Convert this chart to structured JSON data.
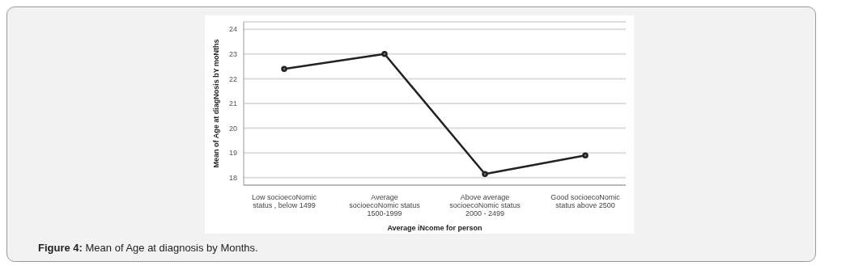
{
  "chart_data": {
    "type": "line",
    "xlabel": "Average iNcome for person",
    "ylabel": "Mean of Age at diagNosis bY moNths",
    "categories": [
      "Low socioecoNomic\nstatus , below 1499",
      "Average\nsocioecoNomic status\n1500-1999",
      "Above average\nsocioecoNomic status\n2000 - 2499",
      "Good socioecoNomic\nstatus above 2500"
    ],
    "series": [
      {
        "color": "#222222",
        "values": [
          22.4,
          23.0,
          18.15,
          18.9
        ]
      }
    ],
    "ylim": [
      17.7,
      24.3
    ],
    "yticks": [
      18,
      19,
      20,
      21,
      22,
      23,
      24
    ],
    "grid": "y",
    "marker": "circle",
    "line_style": "solid",
    "annotations": [
      "Figure 4: Mean of Age at diagnosis by Months."
    ]
  }
}
